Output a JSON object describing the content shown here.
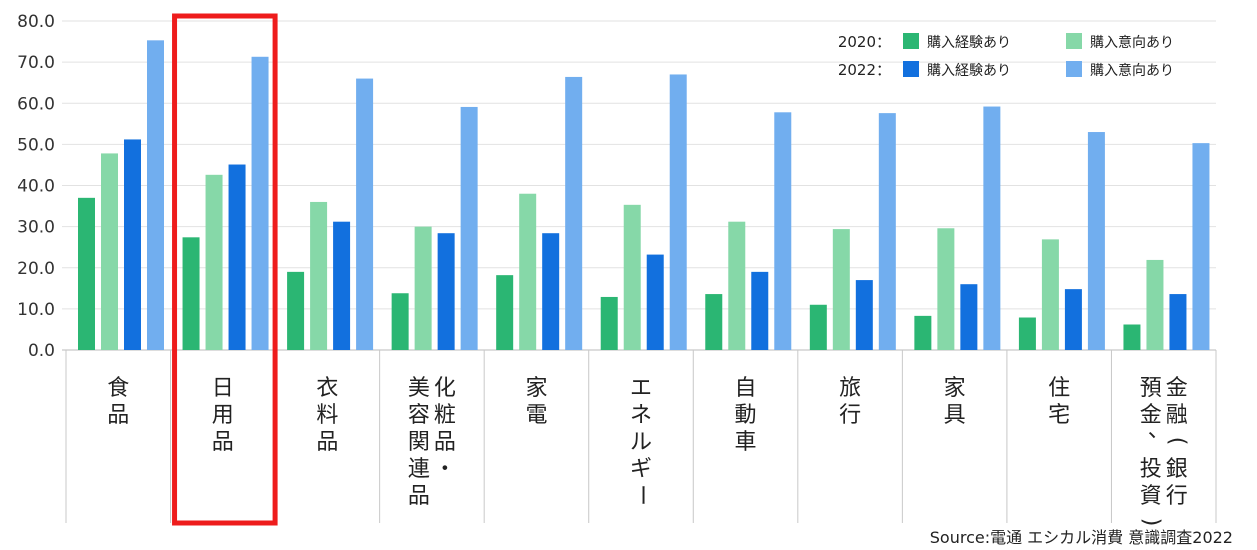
{
  "chart_data": {
    "type": "bar",
    "categories": [
      "食品",
      "日用品",
      "衣料品",
      "化粧品・美容関連品",
      "家電",
      "エネルギー",
      "自動車",
      "旅行",
      "家具",
      "住宅",
      "金融(銀行預金、投資)"
    ],
    "category_lines": [
      [
        "食品"
      ],
      [
        "日用品"
      ],
      [
        "衣料品"
      ],
      [
        "化粧品・",
        "美容関連品"
      ],
      [
        "家電"
      ],
      [
        "エネルギー"
      ],
      [
        "自動車"
      ],
      [
        "旅行"
      ],
      [
        "家具"
      ],
      [
        "住宅"
      ],
      [
        "金融(銀行",
        "預金、投資)"
      ]
    ],
    "series": [
      {
        "name": "2020：購入経験あり",
        "year": "2020",
        "label": "購入経験あり",
        "color": "#2bb673",
        "values": [
          37.0,
          27.4,
          19.0,
          13.8,
          18.2,
          12.9,
          13.6,
          11.0,
          8.3,
          7.9,
          6.2
        ]
      },
      {
        "name": "2020：購入意向あり",
        "year": "2020",
        "label": "購入意向あり",
        "color": "#86d8a8",
        "values": [
          47.8,
          42.6,
          36.0,
          30.0,
          38.0,
          35.3,
          31.2,
          29.4,
          29.6,
          26.9,
          21.9
        ]
      },
      {
        "name": "2022：購入経験あり",
        "year": "2022",
        "label": "購入経験あり",
        "color": "#1270de",
        "values": [
          51.2,
          45.1,
          31.2,
          28.4,
          28.4,
          23.2,
          19.0,
          17.0,
          16.0,
          14.8,
          13.6
        ]
      },
      {
        "name": "2022：購入意向あり",
        "year": "2022",
        "label": "購入意向あり",
        "color": "#71aeef",
        "values": [
          75.3,
          71.3,
          66.0,
          59.1,
          66.4,
          67.0,
          57.8,
          57.6,
          59.2,
          53.0,
          50.3
        ]
      }
    ],
    "legend": {
      "rows": [
        {
          "year": "2020",
          "sep": "：",
          "items": [
            "購入経験あり",
            "購入意向あり"
          ]
        },
        {
          "year": "2022",
          "sep": "：",
          "items": [
            "購入経験あり",
            "購入意向あり"
          ]
        }
      ],
      "placement": "top-right"
    },
    "ylim": [
      0,
      80
    ],
    "yticks": [
      "0.0",
      "10.0",
      "20.0",
      "30.0",
      "40.0",
      "50.0",
      "60.0",
      "70.0",
      "80.0"
    ],
    "grid": true,
    "highlight_category": "日用品",
    "highlight_color": "#ee1c1c",
    "source": "Source:電通  エシカル消費 意識調査2022"
  }
}
